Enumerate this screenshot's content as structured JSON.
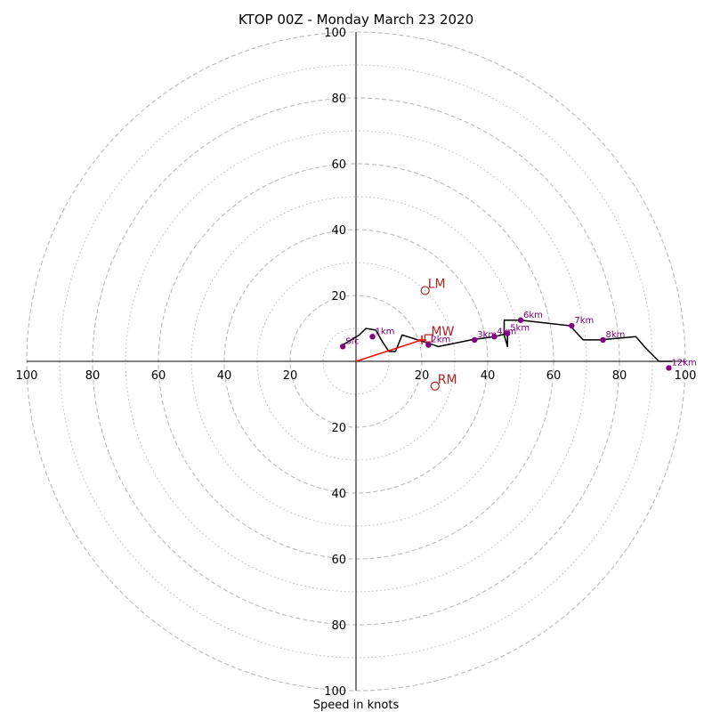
{
  "chart_data": {
    "type": "hodograph",
    "title": "KTOP 00Z - Monday March 23 2020",
    "xlabel": "Speed in knots",
    "ring_max": 100,
    "major_rings": [
      20,
      40,
      60,
      80,
      100
    ],
    "minor_rings": [
      10,
      30,
      50,
      70,
      90
    ],
    "tick_labels": [
      "20",
      "40",
      "60",
      "80",
      "100"
    ],
    "profile": {
      "u": [
        -4,
        1,
        3,
        6,
        8,
        10,
        12,
        14,
        22,
        25,
        35,
        42,
        46,
        46,
        45,
        45,
        50,
        65,
        69,
        74,
        85,
        88,
        92,
        95,
        96
      ],
      "v": [
        5,
        8,
        10,
        9.5,
        6,
        3,
        3,
        8,
        5.5,
        4.5,
        6.5,
        7.5,
        8.5,
        4.5,
        8,
        12.5,
        12.5,
        10.8,
        6.5,
        6.5,
        7.5,
        4,
        0,
        0,
        0
      ]
    },
    "height_markers": [
      {
        "label": "Sfc",
        "u": -4,
        "v": 4.5
      },
      {
        "label": "1km",
        "u": 5,
        "v": 7.5
      },
      {
        "label": "2km",
        "u": 22,
        "v": 5
      },
      {
        "label": "3km",
        "u": 36,
        "v": 6.5
      },
      {
        "label": "4km",
        "u": 42,
        "v": 7.5
      },
      {
        "label": "5km",
        "u": 46,
        "v": 8.5
      },
      {
        "label": "6km",
        "u": 50,
        "v": 12.5
      },
      {
        "label": "7km",
        "u": 65.5,
        "v": 10.8
      },
      {
        "label": "8km",
        "u": 75,
        "v": 6.5
      },
      {
        "label": "12km",
        "u": 95,
        "v": -2
      }
    ],
    "storm_motions": [
      {
        "label": "LM",
        "u": 21,
        "v": 21.5,
        "marker": "circle"
      },
      {
        "label": "MW",
        "u": 22,
        "v": 7,
        "marker": "square"
      },
      {
        "label": "RM",
        "u": 24,
        "v": -7.5,
        "marker": "circle"
      }
    ],
    "shear_vector": {
      "from": [
        0,
        0
      ],
      "to": [
        20,
        6.5
      ]
    }
  },
  "colors": {
    "profile": "#000000",
    "markers": "#800080",
    "storm_motion": "#b22222",
    "shear_vector": "#ff0000",
    "grid": "#bbbbbb"
  }
}
